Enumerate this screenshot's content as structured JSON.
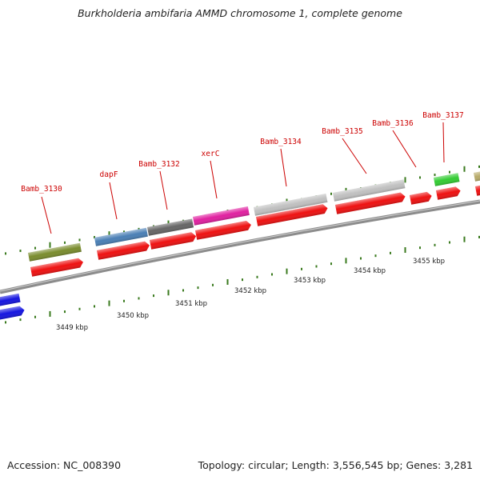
{
  "title": "Burkholderia ambifaria AMMD chromosome 1, complete genome",
  "footer": {
    "accession": "Accession: NC_008390",
    "summary": "Topology: circular; Length: 3,556,545 bp; Genes: 3,281"
  },
  "colors": {
    "backbone": "#8c8c8c",
    "cds_arrow": "#ee1111",
    "label": "#cc0000",
    "tick": "#3a7a1e",
    "olive": "#7a8c2e",
    "steelblue": "#4a7fb5",
    "darkgray": "#666666",
    "magenta": "#e020a0",
    "lightgray": "#c0c0c0",
    "green": "#33cc33",
    "blue": "#1515e0",
    "tan": "#b8ab6a"
  },
  "scale_labels": [
    "3449 kbp",
    "3450 kbp",
    "3451 kbp",
    "3452 kbp",
    "3453 kbp",
    "3454 kbp",
    "3455 kbp"
  ],
  "genes": [
    {
      "label": "Bamb_3130",
      "color": "olive"
    },
    {
      "label": "dapF",
      "color": "steelblue"
    },
    {
      "label": "Bamb_3132",
      "color": "darkgray"
    },
    {
      "label": "xerC",
      "color": "magenta"
    },
    {
      "label": "Bamb_3134",
      "color": "lightgray"
    },
    {
      "label": "Bamb_3135",
      "color": "lightgray"
    },
    {
      "label": "Bamb_3136",
      "color": ""
    },
    {
      "label": "Bamb_3137",
      "color": "green"
    }
  ]
}
